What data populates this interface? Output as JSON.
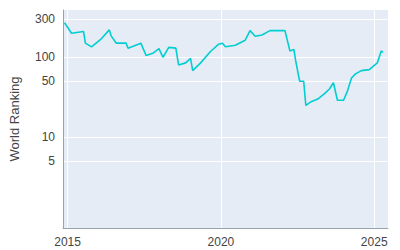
{
  "chart_data": {
    "type": "line",
    "ylabel": "World Ranking",
    "x": [
      2014.9,
      2015.13,
      2015.52,
      2015.58,
      2015.78,
      2016.1,
      2016.36,
      2016.42,
      2016.59,
      2016.91,
      2016.97,
      2017.39,
      2017.56,
      2017.78,
      2017.98,
      2018.11,
      2018.3,
      2018.53,
      2018.62,
      2018.85,
      2019.01,
      2019.08,
      2019.34,
      2019.66,
      2019.92,
      2020.05,
      2020.15,
      2020.47,
      2020.79,
      2020.95,
      2021.12,
      2021.34,
      2021.6,
      2022.09,
      2022.25,
      2022.38,
      2022.44,
      2022.51,
      2022.57,
      2022.7,
      2022.77,
      2022.96,
      2023.16,
      2023.38,
      2023.54,
      2023.67,
      2023.8,
      2024.0,
      2024.13,
      2024.26,
      2024.39,
      2024.58,
      2024.84,
      2025.1,
      2025.23,
      2025.29
    ],
    "values": [
      270,
      200,
      210,
      150,
      135,
      170,
      220,
      185,
      150,
      150,
      130,
      150,
      105,
      112,
      128,
      100,
      133,
      130,
      80,
      85,
      97,
      68,
      85,
      118,
      145,
      150,
      135,
      141,
      163,
      215,
      183,
      190,
      215,
      215,
      120,
      125,
      90,
      65,
      50,
      50,
      25,
      28,
      30,
      35,
      40,
      48,
      29,
      29,
      38,
      55,
      62,
      68,
      70,
      85,
      120,
      115
    ],
    "color": "#00ced1",
    "xlim": [
      2014.85,
      2025.45
    ],
    "xticks": [
      2015,
      2020,
      2025
    ],
    "ylim": [
      0.73,
      390
    ],
    "yticks": [
      5,
      10,
      50,
      100,
      300
    ],
    "log": "y",
    "grid": true
  }
}
